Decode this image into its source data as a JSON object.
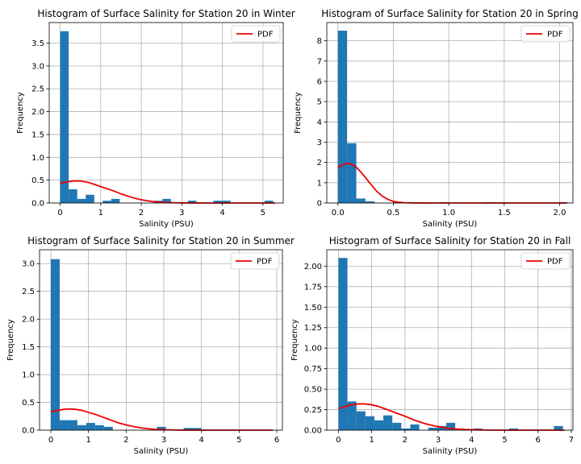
{
  "colors": {
    "bar": "#1f77b4",
    "pdf": "#ee0000",
    "grid": "#b0b0b0"
  },
  "chart_data": [
    {
      "type": "bar",
      "title": "Histogram of Surface Salinity for Station 20 in Winter",
      "xlabel": "Salinity (PSU)",
      "ylabel": "Frequency",
      "xlim": [
        -0.27,
        5.5
      ],
      "ylim": [
        0,
        3.95
      ],
      "xticks": [
        0,
        1,
        2,
        3,
        4,
        5
      ],
      "yticks": [
        0.0,
        0.5,
        1.0,
        1.5,
        2.0,
        2.5,
        3.0,
        3.5
      ],
      "ytick_labels": [
        "0.0",
        "0.5",
        "1.0",
        "1.5",
        "2.0",
        "2.5",
        "3.0",
        "3.5"
      ],
      "bin_start": 0.0,
      "bin_width": 0.21,
      "values": [
        3.76,
        0.3,
        0.09,
        0.18,
        0.0,
        0.05,
        0.09,
        0.0,
        0.0,
        0.0,
        0.0,
        0.05,
        0.09,
        0.0,
        0.0,
        0.05,
        0.0,
        0.0,
        0.05,
        0.05,
        0.0,
        0.0,
        0.0,
        0.0,
        0.05
      ],
      "pdf": [
        [
          0.0,
          0.43
        ],
        [
          0.1,
          0.45
        ],
        [
          0.3,
          0.48
        ],
        [
          0.5,
          0.48
        ],
        [
          0.7,
          0.45
        ],
        [
          0.9,
          0.39
        ],
        [
          1.1,
          0.33
        ],
        [
          1.3,
          0.27
        ],
        [
          1.5,
          0.2
        ],
        [
          1.7,
          0.14
        ],
        [
          1.9,
          0.09
        ],
        [
          2.1,
          0.055
        ],
        [
          2.3,
          0.03
        ],
        [
          2.5,
          0.016
        ],
        [
          2.8,
          0.006
        ],
        [
          3.2,
          0.001
        ],
        [
          3.6,
          0.0
        ],
        [
          4.2,
          0.0
        ],
        [
          5.0,
          0.0
        ],
        [
          5.3,
          0.0
        ]
      ],
      "legend": "PDF",
      "legend_position": "upper right",
      "grid": true
    },
    {
      "type": "bar",
      "title": "Histogram of Surface Salinity for Station 20 in Spring",
      "xlabel": "Salinity (PSU)",
      "ylabel": "Frequency",
      "xlim": [
        -0.1,
        2.12
      ],
      "ylim": [
        0,
        8.9
      ],
      "xticks": [
        0.0,
        0.5,
        1.0,
        1.5,
        2.0
      ],
      "xtick_labels": [
        "0.0",
        "0.5",
        "1.0",
        "1.5",
        "2.0"
      ],
      "yticks": [
        0,
        1,
        2,
        3,
        4,
        5,
        6,
        7,
        8
      ],
      "bin_start": 0.0,
      "bin_width": 0.083,
      "values": [
        8.5,
        2.95,
        0.22,
        0.08,
        0.0,
        0.0,
        0.04,
        0.0,
        0.0,
        0.0,
        0.0,
        0.04,
        0.0,
        0.0,
        0.0,
        0.0,
        0.04,
        0.0,
        0.0,
        0.0,
        0.0,
        0.0,
        0.0,
        0.0,
        0.04
      ],
      "pdf": [
        [
          0.0,
          1.75
        ],
        [
          0.04,
          1.88
        ],
        [
          0.08,
          1.95
        ],
        [
          0.12,
          1.92
        ],
        [
          0.16,
          1.8
        ],
        [
          0.2,
          1.57
        ],
        [
          0.25,
          1.25
        ],
        [
          0.3,
          0.9
        ],
        [
          0.35,
          0.58
        ],
        [
          0.4,
          0.34
        ],
        [
          0.45,
          0.18
        ],
        [
          0.5,
          0.08
        ],
        [
          0.55,
          0.04
        ],
        [
          0.6,
          0.015
        ],
        [
          0.7,
          0.003
        ],
        [
          0.85,
          0.0
        ],
        [
          1.2,
          0.0
        ],
        [
          1.6,
          0.0
        ],
        [
          2.06,
          0.0
        ]
      ],
      "legend": "PDF",
      "legend_position": "upper right",
      "grid": true
    },
    {
      "type": "bar",
      "title": "Histogram of Surface Salinity for Station 20 in Summer",
      "xlabel": "Salinity (PSU)",
      "ylabel": "Frequency",
      "xlim": [
        -0.3,
        6.15
      ],
      "ylim": [
        0,
        3.25
      ],
      "xticks": [
        0,
        1,
        2,
        3,
        4,
        5,
        6
      ],
      "yticks": [
        0.0,
        0.5,
        1.0,
        1.5,
        2.0,
        2.5,
        3.0
      ],
      "ytick_labels": [
        "0.0",
        "0.5",
        "1.0",
        "1.5",
        "2.0",
        "2.5",
        "3.0"
      ],
      "bin_start": 0.0,
      "bin_width": 0.235,
      "values": [
        3.08,
        0.18,
        0.18,
        0.09,
        0.13,
        0.09,
        0.06,
        0.0,
        0.0,
        0.0,
        0.0,
        0.0,
        0.06,
        0.0,
        0.0,
        0.04,
        0.04,
        0.0,
        0.0,
        0.0,
        0.0,
        0.0,
        0.0,
        0.0,
        0.0
      ],
      "pdf": [
        [
          0.0,
          0.33
        ],
        [
          0.2,
          0.36
        ],
        [
          0.4,
          0.38
        ],
        [
          0.6,
          0.38
        ],
        [
          0.8,
          0.36
        ],
        [
          1.0,
          0.32
        ],
        [
          1.2,
          0.28
        ],
        [
          1.4,
          0.23
        ],
        [
          1.6,
          0.18
        ],
        [
          1.8,
          0.13
        ],
        [
          2.0,
          0.095
        ],
        [
          2.2,
          0.065
        ],
        [
          2.4,
          0.04
        ],
        [
          2.6,
          0.025
        ],
        [
          2.8,
          0.014
        ],
        [
          3.0,
          0.008
        ],
        [
          3.4,
          0.002
        ],
        [
          3.8,
          0.0
        ],
        [
          4.5,
          0.0
        ],
        [
          5.2,
          0.0
        ],
        [
          5.9,
          0.0
        ]
      ],
      "legend": "PDF",
      "legend_position": "upper right",
      "grid": true
    },
    {
      "type": "bar",
      "title": "Histogram of Surface Salinity for Station 20 in Fall",
      "xlabel": "Salinity (PSU)",
      "ylabel": "Frequency",
      "xlim": [
        -0.35,
        7.05
      ],
      "ylim": [
        0,
        2.2
      ],
      "xticks": [
        0,
        1,
        2,
        3,
        4,
        5,
        6,
        7
      ],
      "yticks": [
        0.0,
        0.25,
        0.5,
        0.75,
        1.0,
        1.25,
        1.5,
        1.75,
        2.0
      ],
      "ytick_labels": [
        "0.00",
        "0.25",
        "0.50",
        "0.75",
        "1.00",
        "1.25",
        "1.50",
        "1.75",
        "2.00"
      ],
      "bin_start": 0.0,
      "bin_width": 0.27,
      "values": [
        2.1,
        0.35,
        0.23,
        0.17,
        0.12,
        0.18,
        0.09,
        0.02,
        0.07,
        0.0,
        0.03,
        0.05,
        0.09,
        0.0,
        0.0,
        0.02,
        0.0,
        0.0,
        0.0,
        0.02,
        0.0,
        0.0,
        0.0,
        0.0,
        0.05
      ],
      "pdf": [
        [
          0.0,
          0.26
        ],
        [
          0.2,
          0.29
        ],
        [
          0.4,
          0.31
        ],
        [
          0.6,
          0.32
        ],
        [
          0.8,
          0.32
        ],
        [
          1.0,
          0.31
        ],
        [
          1.2,
          0.29
        ],
        [
          1.4,
          0.26
        ],
        [
          1.6,
          0.23
        ],
        [
          1.8,
          0.2
        ],
        [
          2.0,
          0.17
        ],
        [
          2.3,
          0.12
        ],
        [
          2.6,
          0.08
        ],
        [
          2.9,
          0.05
        ],
        [
          3.2,
          0.03
        ],
        [
          3.5,
          0.016
        ],
        [
          3.8,
          0.008
        ],
        [
          4.2,
          0.003
        ],
        [
          4.8,
          0.0
        ],
        [
          5.6,
          0.0
        ],
        [
          6.4,
          0.0
        ],
        [
          6.8,
          0.0
        ]
      ],
      "legend": "PDF",
      "legend_position": "upper right",
      "grid": true
    }
  ]
}
